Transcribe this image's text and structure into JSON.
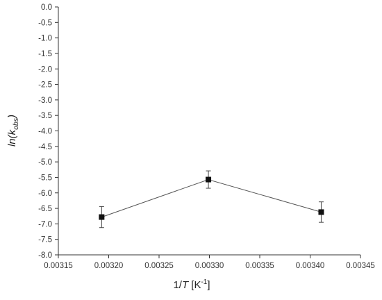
{
  "chart_data": {
    "type": "scatter",
    "title": "",
    "xlabel": {
      "prefix": "1/",
      "var": "T",
      "unit_open": " [K",
      "unit_sup": "-1",
      "unit_close": "]"
    },
    "ylabel": {
      "pre": "ln(k",
      "sub": "obs",
      "post": ")"
    },
    "xlim": [
      0.00315,
      0.00345
    ],
    "ylim": [
      -8.0,
      0.0
    ],
    "x_ticks": [
      "0.00315",
      "0.00320",
      "0.00325",
      "0.00330",
      "0.00335",
      "0.00340",
      "0.00345"
    ],
    "y_ticks": [
      "0.0",
      "-0.5",
      "-1.0",
      "-1.5",
      "-2.0",
      "-2.5",
      "-3.0",
      "-3.5",
      "-4.0",
      "-4.5",
      "-5.0",
      "-5.5",
      "-6.0",
      "-6.5",
      "-7.0",
      "-7.5",
      "-8.0"
    ],
    "series": [
      {
        "x": [
          0.003193,
          0.003299,
          0.003411
        ],
        "y": [
          -6.78,
          -5.57,
          -6.62
        ],
        "yerr": [
          0.34,
          0.28,
          0.33
        ],
        "marker": "square",
        "connect": "line"
      }
    ],
    "grid": false,
    "legend": "none"
  }
}
